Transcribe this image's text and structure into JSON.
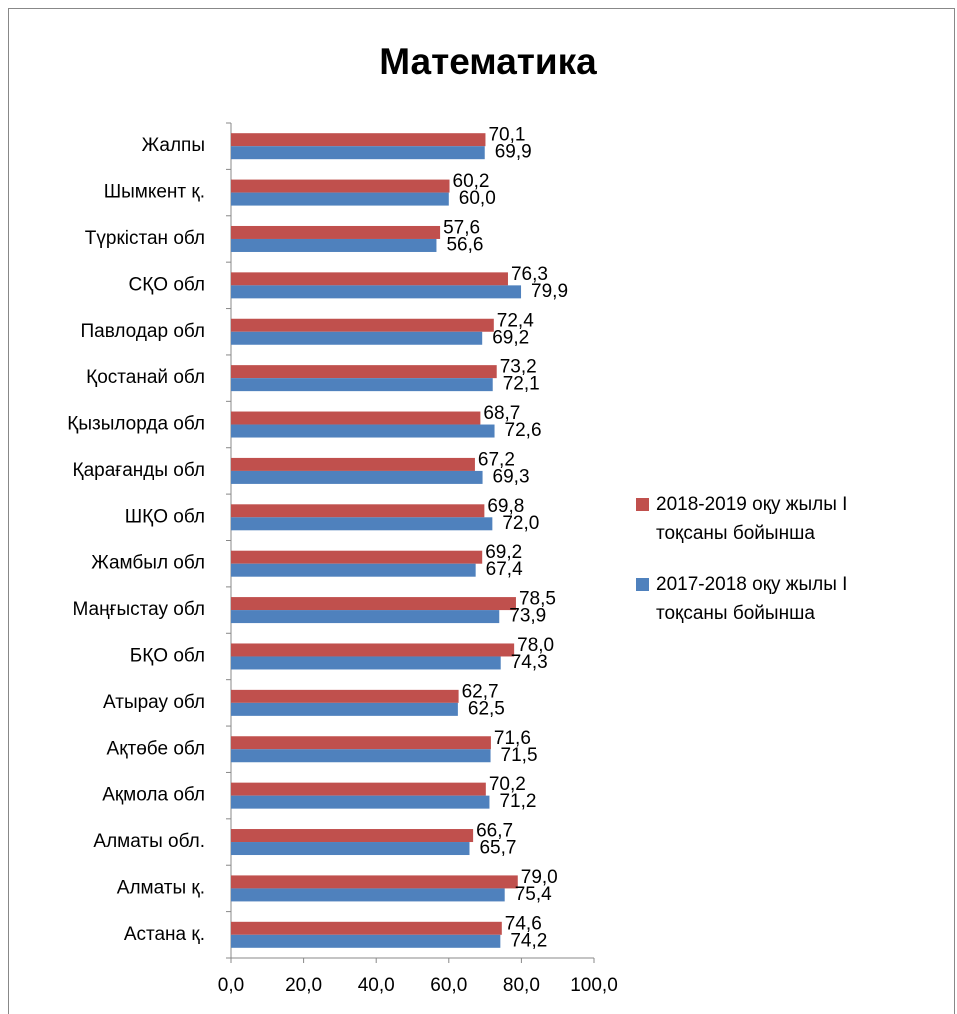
{
  "chart_data": {
    "type": "bar",
    "orientation": "horizontal",
    "title": "Математика",
    "categories": [
      "Жалпы",
      "Шымкент қ.",
      "Түркістан обл",
      "СҚО обл",
      "Павлодар обл",
      "Қостанай обл",
      "Қызылорда обл",
      "Қарағанды обл",
      "ШҚО обл",
      "Жамбыл обл",
      "Маңғыстау обл",
      "БҚО обл",
      "Атырау обл",
      "Ақтөбе обл",
      "Ақмола обл",
      "Алматы обл.",
      "Алматы қ.",
      "Астана қ."
    ],
    "series": [
      {
        "name": "2018-2019 оқу жылы  I тоқсаны бойынша",
        "color": "#c0504d",
        "values": [
          70.1,
          60.2,
          57.6,
          76.3,
          72.4,
          73.2,
          68.7,
          67.2,
          69.8,
          69.2,
          78.5,
          78.0,
          62.7,
          71.6,
          70.2,
          66.7,
          79.0,
          74.6
        ],
        "value_labels": [
          "70,1",
          "60,2",
          "57,6",
          "76,3",
          "72,4",
          "73,2",
          "68,7",
          "67,2",
          "69,8",
          "69,2",
          "78,5",
          "78,0",
          "62,7",
          "71,6",
          "70,2",
          "66,7",
          "79,0",
          "74,6"
        ]
      },
      {
        "name": "2017-2018 оқу жылы  I тоқсаны бойынша",
        "color": "#4f81bd",
        "values": [
          69.9,
          60.0,
          56.6,
          79.9,
          69.2,
          72.1,
          72.6,
          69.3,
          72.0,
          67.4,
          73.9,
          74.3,
          62.5,
          71.5,
          71.2,
          65.7,
          75.4,
          74.2
        ],
        "value_labels": [
          "69,9",
          "60,0",
          "56,6",
          "79,9",
          "69,2",
          "72,1",
          "72,6",
          "69,3",
          "72,0",
          "67,4",
          "73,9",
          "74,3",
          "62,5",
          "71,5",
          "71,2",
          "65,7",
          "75,4",
          "74,2"
        ]
      }
    ],
    "xlim": [
      0,
      100
    ],
    "xticks": [
      {
        "value": 0,
        "label": "0,0"
      },
      {
        "value": 20,
        "label": "20,0"
      },
      {
        "value": 40,
        "label": "40,0"
      },
      {
        "value": 60,
        "label": "60,0"
      },
      {
        "value": 80,
        "label": "80,0"
      },
      {
        "value": 100,
        "label": "100,0"
      }
    ],
    "legend": "right"
  }
}
